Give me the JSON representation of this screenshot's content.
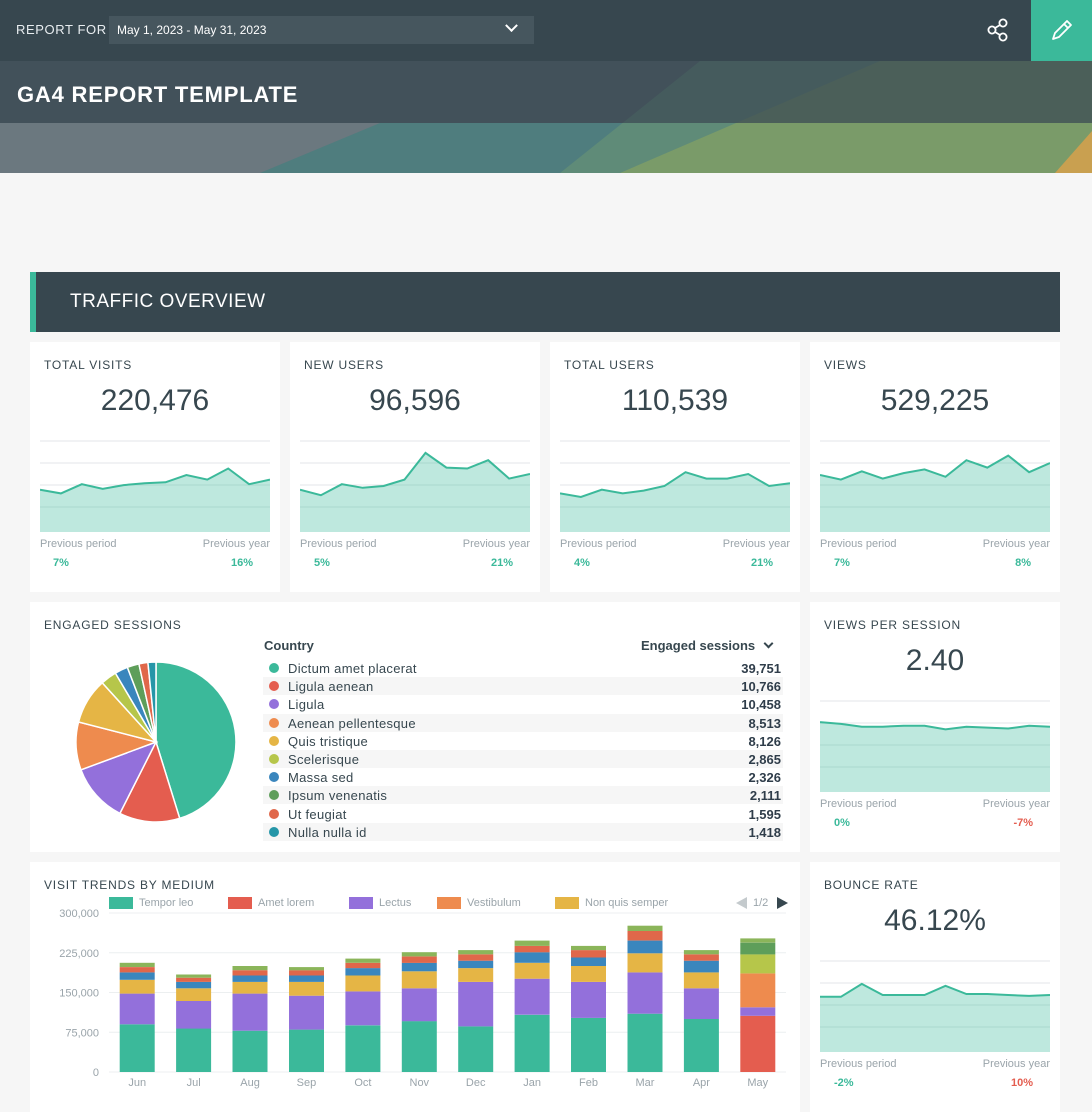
{
  "header": {
    "report_for_label": "REPORT FOR",
    "date_range": "May 1, 2023 - May 31, 2023",
    "title": "GA4 REPORT TEMPLATE",
    "share_icon": "share-icon",
    "edit_icon": "pencil-icon"
  },
  "section": {
    "title": "TRAFFIC OVERVIEW"
  },
  "colors": {
    "accent": "#3bb99a",
    "dark": "#37474f",
    "negative": "#e45d4f"
  },
  "kpis": [
    {
      "title": "TOTAL VISITS",
      "value": "220,476",
      "prev_label": "Previous period",
      "prev_value": "7%",
      "year_label": "Previous year",
      "year_value": "16%"
    },
    {
      "title": "NEW USERS",
      "value": "96,596",
      "prev_label": "Previous period",
      "prev_value": "5%",
      "year_label": "Previous year",
      "year_value": "21%"
    },
    {
      "title": "TOTAL USERS",
      "value": "110,539",
      "prev_label": "Previous period",
      "prev_value": "4%",
      "year_label": "Previous year",
      "year_value": "21%"
    },
    {
      "title": "VIEWS",
      "value": "529,225",
      "prev_label": "Previous period",
      "prev_value": "7%",
      "year_label": "Previous year",
      "year_value": "8%"
    }
  ],
  "vps": {
    "title": "VIEWS PER SESSION",
    "value": "2.40",
    "prev_label": "Previous period",
    "prev_value": "0%",
    "year_label": "Previous year",
    "year_value": "-7%"
  },
  "bounce": {
    "title": "BOUNCE RATE",
    "value": "46.12%",
    "prev_label": "Previous period",
    "prev_value": "-2%",
    "year_label": "Previous year",
    "year_value": "10%"
  },
  "engaged": {
    "title": "ENGAGED SESSIONS",
    "col_country": "Country",
    "col_sessions": "Engaged sessions"
  },
  "trends": {
    "title": "VISIT TRENDS BY MEDIUM",
    "page": "1/2"
  },
  "chart_data": [
    {
      "type": "pie",
      "title": "ENGAGED SESSIONS",
      "categories": [
        "Dictum amet placerat",
        "Ligula aenean",
        "Ligula",
        "Aenean pellentesque",
        "Quis tristique",
        "Scelerisque",
        "Massa sed",
        "Ipsum venenatis",
        "Ut feugiat",
        "Nulla nulla id"
      ],
      "values": [
        39751,
        10766,
        10458,
        8513,
        8126,
        2865,
        2326,
        2111,
        1595,
        1418
      ],
      "display_values": [
        "39,751",
        "10,766",
        "10,458",
        "8,513",
        "8,126",
        "2,865",
        "2,326",
        "2,111",
        "1,595",
        "1,418"
      ],
      "colors": [
        "#3bb99a",
        "#e45d4f",
        "#9370db",
        "#ee8b4e",
        "#e5b545",
        "#b6c64a",
        "#3a86bd",
        "#5e9e5a",
        "#e0674a",
        "#2596a8"
      ]
    },
    {
      "type": "bar",
      "stacked": true,
      "title": "VISIT TRENDS BY MEDIUM",
      "categories": [
        "Jun",
        "Jul",
        "Aug",
        "Sep",
        "Oct",
        "Nov",
        "Dec",
        "Jan",
        "Feb",
        "Mar",
        "Apr",
        "May"
      ],
      "yticks": [
        "300,000",
        "225,000",
        "150,000",
        "75,000",
        "0"
      ],
      "ylim": [
        0,
        300000
      ],
      "series": [
        {
          "name": "Tempor leo",
          "color": "#3bb99a",
          "values": [
            90000,
            82000,
            78000,
            80000,
            88000,
            96000,
            86000,
            108000,
            102000,
            110000,
            100000,
            0
          ]
        },
        {
          "name": "Amet lorem",
          "color": "#e45d4f",
          "values": [
            0,
            0,
            0,
            0,
            0,
            0,
            0,
            0,
            0,
            0,
            0,
            106000
          ]
        },
        {
          "name": "Lectus",
          "color": "#9370db",
          "values": [
            58000,
            52000,
            70000,
            64000,
            64000,
            62000,
            84000,
            68000,
            68000,
            78000,
            58000,
            16000
          ]
        },
        {
          "name": "Vestibulum",
          "color": "#ee8b4e",
          "values": [
            0,
            0,
            0,
            0,
            0,
            0,
            0,
            0,
            0,
            0,
            0,
            64000
          ]
        },
        {
          "name": "Non quis semper",
          "color": "#e5b545",
          "values": [
            26000,
            24000,
            22000,
            26000,
            30000,
            32000,
            26000,
            30000,
            30000,
            36000,
            30000,
            0
          ]
        },
        {
          "name": "",
          "color": "#b6c64a",
          "values": [
            0,
            0,
            0,
            0,
            0,
            0,
            0,
            0,
            0,
            0,
            0,
            36000
          ]
        },
        {
          "name": "",
          "color": "#3a86bd",
          "values": [
            14000,
            12000,
            12000,
            12000,
            14000,
            16000,
            14000,
            20000,
            16000,
            24000,
            22000,
            0
          ]
        },
        {
          "name": "",
          "color": "#5e9e5a",
          "values": [
            0,
            0,
            0,
            0,
            0,
            0,
            0,
            0,
            0,
            0,
            0,
            22000
          ]
        },
        {
          "name": "",
          "color": "#e0674a",
          "values": [
            10000,
            8000,
            10000,
            10000,
            10000,
            12000,
            12000,
            12000,
            14000,
            18000,
            12000,
            0
          ]
        },
        {
          "name": "",
          "color": "#8bb55a",
          "values": [
            8000,
            6000,
            8000,
            6000,
            8000,
            8000,
            8000,
            10000,
            8000,
            10000,
            8000,
            8000
          ]
        }
      ]
    },
    {
      "type": "area",
      "title": "TOTAL VISITS",
      "values": [
        0.46,
        0.42,
        0.52,
        0.47,
        0.51,
        0.53,
        0.54,
        0.62,
        0.57,
        0.69,
        0.52,
        0.57
      ]
    },
    {
      "type": "area",
      "title": "NEW USERS",
      "values": [
        0.46,
        0.4,
        0.52,
        0.48,
        0.5,
        0.57,
        0.86,
        0.7,
        0.69,
        0.78,
        0.58,
        0.63
      ]
    },
    {
      "type": "area",
      "title": "TOTAL USERS",
      "values": [
        0.42,
        0.38,
        0.46,
        0.42,
        0.45,
        0.5,
        0.65,
        0.58,
        0.58,
        0.63,
        0.5,
        0.53
      ]
    },
    {
      "type": "area",
      "title": "VIEWS",
      "values": [
        0.62,
        0.57,
        0.66,
        0.58,
        0.64,
        0.68,
        0.6,
        0.78,
        0.7,
        0.83,
        0.65,
        0.75
      ]
    },
    {
      "type": "area",
      "title": "VIEWS PER SESSION",
      "values": [
        0.76,
        0.74,
        0.71,
        0.71,
        0.72,
        0.72,
        0.68,
        0.71,
        0.7,
        0.69,
        0.72,
        0.71
      ]
    },
    {
      "type": "area",
      "title": "BOUNCE RATE",
      "values": [
        0.6,
        0.6,
        0.74,
        0.62,
        0.62,
        0.62,
        0.72,
        0.63,
        0.63,
        0.62,
        0.61,
        0.62
      ]
    }
  ]
}
